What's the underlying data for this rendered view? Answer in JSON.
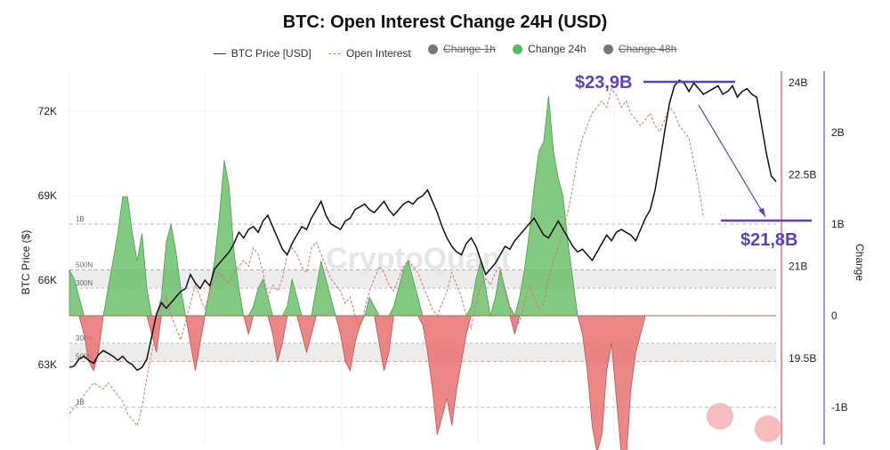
{
  "chart_data": {
    "type": "area",
    "title": "BTC: Open Interest Change 24H (USD)",
    "watermark": "CryptoQuant",
    "legend": [
      {
        "name": "BTC Price [USD]",
        "style": "line",
        "color": "#333333",
        "visible": true
      },
      {
        "name": "Open Interest",
        "style": "dashed",
        "color": "#d9716f",
        "visible": true
      },
      {
        "name": "Change 1h",
        "style": "dot",
        "color": "#777777",
        "visible": false
      },
      {
        "name": "Change 24h",
        "style": "dot",
        "color": "#5cb85c",
        "visible": true
      },
      {
        "name": "Change 48h",
        "style": "dot",
        "color": "#777777",
        "visible": false
      }
    ],
    "left_axis": {
      "label": "BTC Price ($)",
      "ticks": [
        "72K",
        "69K",
        "66K",
        "63K"
      ],
      "tick_values": [
        72000,
        69000,
        66000,
        63000
      ]
    },
    "oi_axis": {
      "ticks": [
        "24B",
        "22.5B",
        "21B",
        "19.5B"
      ],
      "tick_values": [
        24,
        22.5,
        21,
        19.5
      ]
    },
    "change_axis": {
      "label": "Change",
      "ticks": [
        "2B",
        "1B",
        "0",
        "-1B"
      ],
      "tick_values": [
        2,
        1,
        0,
        -1
      ]
    },
    "band_labels": [
      "1B",
      "500N",
      "300N",
      "300N",
      "500N",
      "1B"
    ],
    "annotations": [
      {
        "text": "$23,9B"
      },
      {
        "text": "$21,8B"
      }
    ],
    "series": [
      {
        "name": "BTC Price [USD]",
        "color": "#111111",
        "values": [
          62900,
          62950,
          63200,
          63300,
          63150,
          63050,
          63350,
          63500,
          63400,
          63300,
          63150,
          63300,
          63100,
          63000,
          62800,
          62900,
          63200,
          64000,
          64800,
          65200,
          65000,
          65200,
          65400,
          65600,
          65700,
          66200,
          65900,
          65700,
          66000,
          65800,
          66400,
          66600,
          66800,
          67000,
          67300,
          67700,
          67500,
          67800,
          67900,
          67700,
          68100,
          68300,
          67900,
          67500,
          67100,
          66900,
          67300,
          67600,
          67900,
          67800,
          68200,
          68500,
          68800,
          68300,
          68000,
          67900,
          67800,
          68100,
          68200,
          68500,
          68600,
          68700,
          68500,
          68400,
          68600,
          68800,
          68500,
          68300,
          68500,
          68700,
          68800,
          68700,
          68900,
          69000,
          69200,
          68800,
          68400,
          67900,
          67500,
          67200,
          67000,
          66900,
          67300,
          67500,
          67200,
          66700,
          66200,
          66400,
          66600,
          66900,
          67200,
          67100,
          67400,
          67600,
          67800,
          68000,
          68200,
          67900,
          67600,
          67500,
          67800,
          68100,
          67800,
          67500,
          67200,
          67000,
          67100,
          66900,
          66700,
          67000,
          67300,
          67600,
          67400,
          67700,
          67800,
          67700,
          67600,
          67400,
          67800,
          68200,
          68500,
          69200,
          70200,
          71300,
          72300,
          72900,
          73100,
          73000,
          72700,
          73000,
          72800,
          72600,
          72700,
          72800,
          72900,
          72600,
          72700,
          72900,
          72500,
          72700,
          72800,
          72600,
          72500,
          71500,
          70500,
          69700,
          69500
        ]
      },
      {
        "name": "Open Interest",
        "color": "#d9716f",
        "unit": "B",
        "values": [
          18.6,
          18.7,
          18.8,
          18.9,
          19.0,
          19.1,
          19.05,
          19.0,
          19.1,
          19.0,
          18.9,
          18.8,
          18.6,
          18.5,
          18.4,
          18.7,
          19.2,
          19.6,
          20.0,
          20.3,
          20.5,
          20.2,
          20.0,
          19.8,
          20.1,
          20.4,
          20.7,
          20.5,
          20.3,
          20.6,
          20.8,
          20.9,
          20.8,
          20.7,
          20.9,
          21.0,
          21.1,
          21.0,
          21.3,
          21.2,
          20.9,
          20.5,
          20.7,
          20.6,
          20.8,
          21.2,
          21.3,
          21.2,
          21.0,
          20.9,
          21.3,
          21.4,
          21.2,
          21.0,
          20.8,
          20.7,
          20.6,
          20.4,
          20.5,
          20.2,
          20.0,
          20.3,
          20.6,
          20.8,
          21.0,
          20.9,
          20.7,
          20.6,
          20.8,
          21.0,
          21.1,
          21.0,
          20.9,
          20.7,
          20.5,
          20.3,
          20.2,
          20.4,
          20.6,
          20.9,
          20.7,
          20.5,
          20.2,
          20.0,
          20.4,
          20.7,
          20.8,
          20.7,
          20.9,
          21.0,
          20.6,
          20.3,
          20.0,
          20.1,
          20.4,
          20.7,
          20.5,
          20.3,
          20.4,
          20.8,
          21.1,
          21.3,
          21.6,
          21.9,
          22.3,
          22.8,
          23.1,
          23.3,
          23.5,
          23.6,
          23.7,
          23.6,
          23.9,
          23.8,
          23.6,
          23.7,
          23.5,
          23.4,
          23.3,
          23.4,
          23.5,
          23.3,
          23.2,
          23.4,
          23.6,
          23.5,
          23.3,
          23.2,
          23.1,
          22.7,
          22.3,
          21.8
        ]
      },
      {
        "name": "Change 24h",
        "color": "#5cb85c",
        "unit": "B",
        "negative_color": "#e06666",
        "values": [
          0.5,
          0.4,
          0.2,
          -0.2,
          -0.5,
          -0.6,
          -0.4,
          0,
          0.3,
          0.6,
          0.9,
          1.3,
          1.3,
          0.9,
          0.6,
          0.9,
          0.3,
          -0.2,
          -0.4,
          0.2,
          0.8,
          1.0,
          0.7,
          0.3,
          0,
          -0.3,
          -0.6,
          -0.3,
          0,
          0.3,
          0.6,
          1.1,
          1.7,
          1.4,
          0.7,
          0.3,
          0,
          -0.2,
          0.1,
          0.3,
          0.4,
          0.2,
          -0.2,
          -0.5,
          -0.3,
          0.1,
          0.4,
          0.2,
          -0.2,
          -0.4,
          -0.2,
          0.3,
          0.6,
          0.4,
          0.2,
          0,
          -0.2,
          -0.5,
          -0.6,
          -0.3,
          -0.1,
          0,
          0.2,
          0.1,
          -0.3,
          -0.6,
          -0.4,
          0.1,
          0.3,
          0.5,
          0.6,
          0.4,
          0.2,
          -0.1,
          -0.4,
          -0.8,
          -1.3,
          -1.1,
          -0.9,
          -1.2,
          -0.8,
          -0.5,
          -0.2,
          0.1,
          0.4,
          0.6,
          0.3,
          0,
          0.2,
          0.5,
          0.3,
          0.1,
          -0.2,
          0.2,
          0.5,
          0.9,
          1.4,
          1.8,
          1.9,
          2.4,
          1.8,
          1.5,
          1.3,
          0.8,
          0.4,
          0,
          -0.2,
          -0.6,
          -1.2,
          -1.5,
          -1.3,
          -0.6,
          -0.3,
          -0.9,
          -1.5,
          -1.6,
          -0.8,
          -0.4,
          -0.2,
          0,
          0,
          0,
          0,
          0,
          0,
          0,
          0,
          0,
          0,
          0,
          0,
          0
        ]
      }
    ]
  }
}
